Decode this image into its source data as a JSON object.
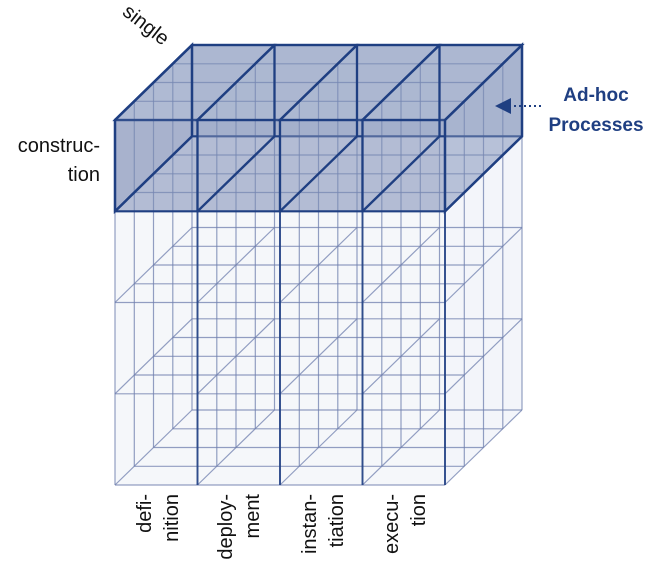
{
  "diagram": {
    "axis_depth_label": "single",
    "axis_row_label": {
      "line1": "construc-",
      "line2": "tion"
    },
    "column_labels": [
      {
        "line1": "defi-",
        "line2": "nition"
      },
      {
        "line1": "deploy-",
        "line2": "ment"
      },
      {
        "line1": "instan-",
        "line2": "tiation"
      },
      {
        "line1": "execu-",
        "line2": "tion"
      }
    ],
    "callout": {
      "line1": "Ad-hoc",
      "line2": "Processes"
    },
    "colors": {
      "grid_light": "#6f7fae",
      "face_fill": "#dde3f0",
      "highlight_fill": "#7b8db5",
      "highlight_stroke": "#1f3f82",
      "accent_text": "#1f3f82"
    }
  }
}
